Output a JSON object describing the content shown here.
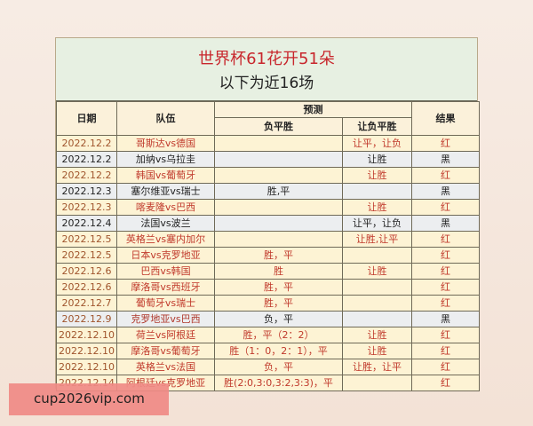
{
  "title": "世界杯61花开51朵",
  "subtitle": "以下为近16场",
  "headers": {
    "date": "日期",
    "team": "队伍",
    "prediction": "预测",
    "fps": "负平胜",
    "handicap": "让负平胜",
    "result": "结果"
  },
  "rows": [
    {
      "date": "2022.12.2",
      "team": "哥斯达vs德国",
      "fps": "",
      "handicap": "让平，让负",
      "result": "红",
      "style": "y"
    },
    {
      "date": "2022.12.2",
      "team": "加纳vs乌拉圭",
      "fps": "",
      "handicap": "让胜",
      "result": "黑",
      "style": "g"
    },
    {
      "date": "2022.12.2",
      "team": "韩国vs葡萄牙",
      "fps": "",
      "handicap": "让胜",
      "result": "红",
      "style": "y"
    },
    {
      "date": "2022.12.3",
      "team": "塞尔维亚vs瑞士",
      "fps": "胜,平",
      "handicap": "",
      "result": "黑",
      "style": "g"
    },
    {
      "date": "2022.12.3",
      "team": "喀麦隆vs巴西",
      "fps": "",
      "handicap": "让胜",
      "result": "红",
      "style": "y"
    },
    {
      "date": "2022.12.4",
      "team": "法国vs波兰",
      "fps": "",
      "handicap": "让平，让负",
      "result": "黑",
      "style": "g"
    },
    {
      "date": "2022.12.5",
      "team": "英格兰vs塞内加尔",
      "fps": "",
      "handicap": "让胜,让平",
      "result": "红",
      "style": "y"
    },
    {
      "date": "2022.12.5",
      "team": "日本vs克罗地亚",
      "fps": "胜，平",
      "handicap": "",
      "result": "红",
      "style": "y"
    },
    {
      "date": "2022.12.6",
      "team": "巴西vs韩国",
      "fps": "胜",
      "handicap": "让胜",
      "result": "红",
      "style": "y"
    },
    {
      "date": "2022.12.6",
      "team": "摩洛哥vs西班牙",
      "fps": "胜，平",
      "handicap": "",
      "result": "红",
      "style": "y"
    },
    {
      "date": "2022.12.7",
      "team": "葡萄牙vs瑞士",
      "fps": "胜，平",
      "handicap": "",
      "result": "红",
      "style": "y"
    },
    {
      "date": "2022.12.9",
      "team": "克罗地亚vs巴西",
      "fps": "负，平",
      "handicap": "",
      "result": "黑",
      "style": "g mix"
    },
    {
      "date": "2022.12.10",
      "team": "荷兰vs阿根廷",
      "fps": "胜，平（2：2）",
      "handicap": "让胜",
      "result": "红",
      "style": "y"
    },
    {
      "date": "2022.12.10",
      "team": "摩洛哥vs葡萄牙",
      "fps": "胜（1：0，2：1），平",
      "handicap": "让胜",
      "result": "红",
      "style": "y"
    },
    {
      "date": "2022.12.10",
      "team": "英格兰vs法国",
      "fps": "负，平",
      "handicap": "让胜，让平",
      "result": "红",
      "style": "y"
    },
    {
      "date": "2022.12.14",
      "team": "阿根廷vs克罗地亚",
      "fps": "胜(2:0,3:0,3:2,3:3)，平",
      "handicap": "",
      "result": "红",
      "style": "y"
    }
  ],
  "watermark": "cup2026vip.com",
  "colors": {
    "title_red": "#c8262c",
    "row_yellow": "#fdf3d4",
    "row_grey": "#eceef0",
    "text_red": "#c0392b"
  }
}
